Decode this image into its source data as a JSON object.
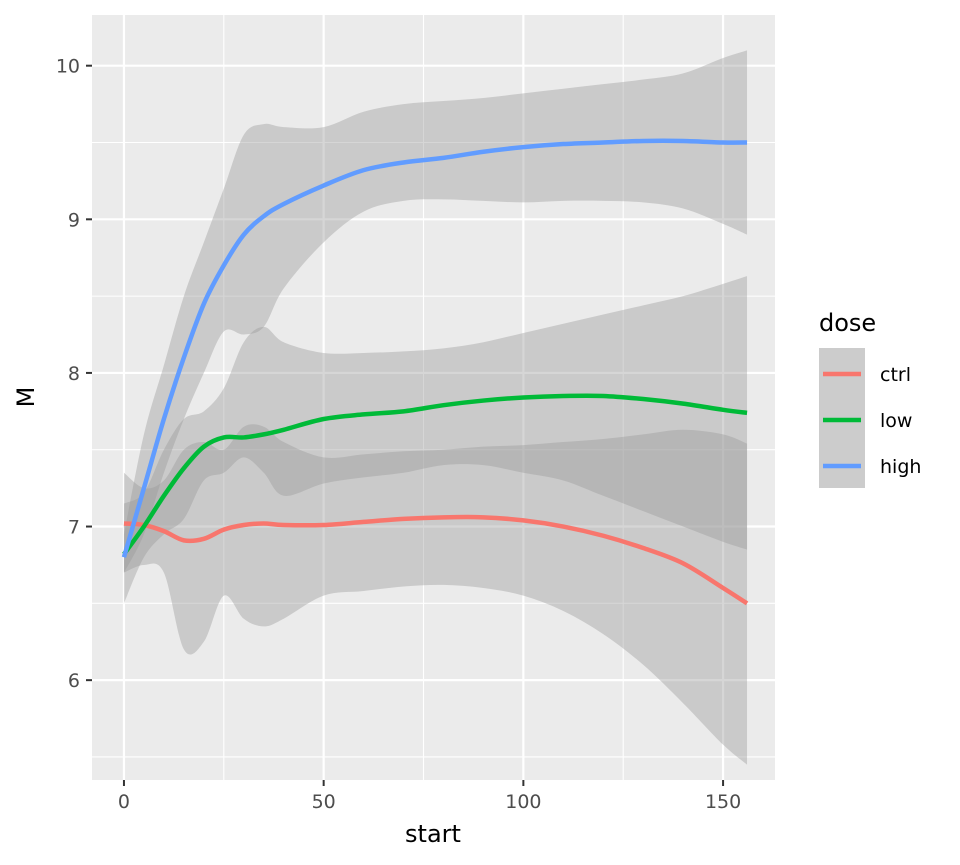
{
  "chart_data": {
    "type": "line",
    "title": "",
    "xlabel": "start",
    "ylabel": "M",
    "xlim": [
      -8,
      163
    ],
    "ylim": [
      5.35,
      10.33
    ],
    "x_ticks": [
      0,
      50,
      100,
      150
    ],
    "x_tick_labels": [
      "0",
      "50",
      "100",
      "150"
    ],
    "y_ticks": [
      6,
      7,
      8,
      9,
      10
    ],
    "y_tick_labels": [
      "6",
      "7",
      "8",
      "9",
      "10"
    ],
    "grid": true,
    "legend": {
      "title": "dose",
      "position": "right"
    },
    "colors": {
      "ctrl": "#F8766D",
      "low": "#00BA38",
      "high": "#619CFF",
      "ribbon": "#999999",
      "panel": "#EBEBEB",
      "grid": "#FFFFFF"
    },
    "series": [
      {
        "name": "ctrl",
        "color": "#F8766D",
        "x": [
          0,
          5,
          10,
          15,
          20,
          25,
          30,
          35,
          40,
          50,
          60,
          70,
          80,
          90,
          100,
          110,
          120,
          130,
          140,
          150,
          156
        ],
        "y": [
          7.02,
          7.01,
          6.97,
          6.91,
          6.92,
          6.98,
          7.01,
          7.02,
          7.01,
          7.01,
          7.03,
          7.05,
          7.06,
          7.06,
          7.04,
          7.0,
          6.94,
          6.86,
          6.76,
          6.6,
          6.5
        ],
        "lower": [
          6.7,
          6.75,
          6.7,
          6.2,
          6.25,
          6.55,
          6.4,
          6.35,
          6.4,
          6.55,
          6.58,
          6.61,
          6.62,
          6.6,
          6.55,
          6.45,
          6.3,
          6.1,
          5.85,
          5.58,
          5.45
        ],
        "upper": [
          7.35,
          7.25,
          7.3,
          7.5,
          7.55,
          7.5,
          7.65,
          7.65,
          7.55,
          7.45,
          7.47,
          7.49,
          7.5,
          7.52,
          7.53,
          7.55,
          7.57,
          7.6,
          7.63,
          7.6,
          7.54
        ]
      },
      {
        "name": "low",
        "color": "#00BA38",
        "x": [
          0,
          5,
          10,
          15,
          20,
          25,
          30,
          35,
          40,
          50,
          60,
          70,
          80,
          90,
          100,
          110,
          120,
          130,
          140,
          150,
          156
        ],
        "y": [
          6.82,
          7.0,
          7.2,
          7.38,
          7.52,
          7.58,
          7.58,
          7.6,
          7.63,
          7.7,
          7.73,
          7.75,
          7.79,
          7.82,
          7.84,
          7.85,
          7.85,
          7.83,
          7.8,
          7.76,
          7.74
        ],
        "lower": [
          6.5,
          6.8,
          6.95,
          7.05,
          7.3,
          7.35,
          7.45,
          7.35,
          7.2,
          7.28,
          7.32,
          7.35,
          7.4,
          7.4,
          7.35,
          7.3,
          7.2,
          7.1,
          7.0,
          6.9,
          6.85
        ],
        "upper": [
          7.15,
          7.22,
          7.5,
          7.7,
          7.75,
          7.9,
          8.2,
          8.3,
          8.2,
          8.13,
          8.13,
          8.14,
          8.16,
          8.2,
          8.26,
          8.32,
          8.38,
          8.44,
          8.5,
          8.58,
          8.63
        ]
      },
      {
        "name": "high",
        "color": "#619CFF",
        "x": [
          0,
          5,
          10,
          15,
          20,
          25,
          30,
          35,
          40,
          50,
          60,
          70,
          80,
          90,
          100,
          110,
          120,
          130,
          140,
          150,
          156
        ],
        "y": [
          6.8,
          7.25,
          7.7,
          8.1,
          8.45,
          8.7,
          8.9,
          9.02,
          9.1,
          9.22,
          9.32,
          9.37,
          9.4,
          9.44,
          9.47,
          9.49,
          9.5,
          9.51,
          9.51,
          9.5,
          9.5
        ],
        "lower": [
          6.7,
          6.95,
          7.35,
          7.7,
          8.0,
          8.27,
          8.25,
          8.3,
          8.55,
          8.85,
          9.05,
          9.12,
          9.13,
          9.12,
          9.11,
          9.12,
          9.12,
          9.11,
          9.07,
          8.97,
          8.9
        ],
        "upper": [
          6.95,
          7.6,
          8.05,
          8.5,
          8.85,
          9.2,
          9.55,
          9.62,
          9.6,
          9.6,
          9.7,
          9.75,
          9.77,
          9.79,
          9.82,
          9.85,
          9.88,
          9.91,
          9.95,
          10.05,
          10.1
        ]
      }
    ]
  }
}
